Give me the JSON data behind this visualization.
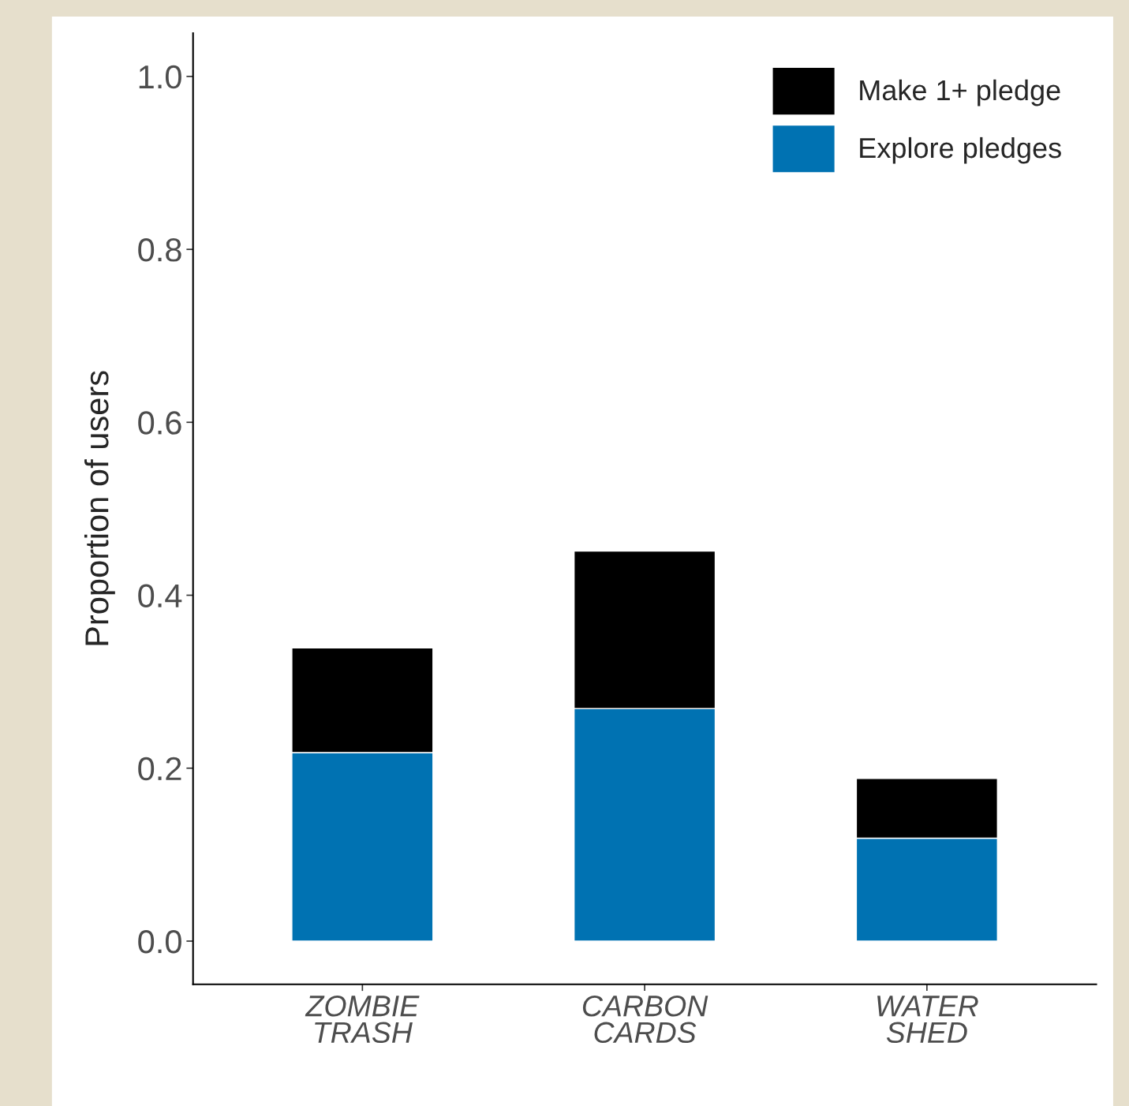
{
  "chart_data": {
    "type": "bar",
    "stacked": true,
    "ylabel": "Proportion of users",
    "categories": [
      "ZOMBIE\nTRASH",
      "CARBON\nCARDS",
      "WATER\nSHED"
    ],
    "series": [
      {
        "name": "Explore pledges",
        "color": "#0072b2",
        "values": [
          0.218,
          0.269,
          0.119
        ]
      },
      {
        "name": "Make 1+ pledge",
        "color": "#000000",
        "values": [
          0.121,
          0.182,
          0.069
        ]
      }
    ],
    "ylim": [
      -0.05,
      1.05
    ],
    "yticks": [
      {
        "value": 0,
        "label": "0.0"
      },
      {
        "value": 0.2,
        "label": "0.2"
      },
      {
        "value": 0.4,
        "label": "0.4"
      },
      {
        "value": 0.6,
        "label": "0.6"
      },
      {
        "value": 0.8,
        "label": "0.8"
      },
      {
        "value": 1,
        "label": "1.0"
      }
    ],
    "grid": false,
    "legend": "top right"
  }
}
